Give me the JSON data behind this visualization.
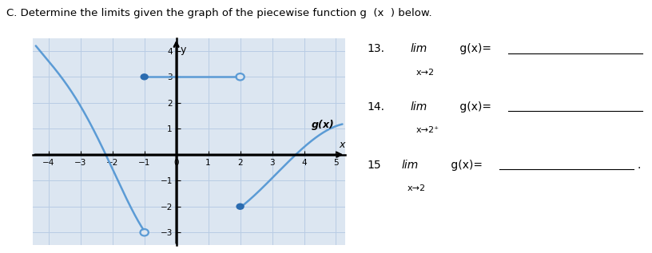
{
  "title": "C. Determine the limits given the graph of the piecewise function g  (x  ) below.",
  "graph_label": "g(x)",
  "xlim": [
    -4.5,
    5.3
  ],
  "ylim": [
    -3.5,
    4.5
  ],
  "xticks": [
    -4,
    -3,
    -2,
    -1,
    0,
    1,
    2,
    3,
    4,
    5
  ],
  "yticks": [
    -3,
    -2,
    -1,
    1,
    2,
    3,
    4
  ],
  "curve_color": "#5b9bd5",
  "curve_lw": 1.8,
  "filled_dot_color": "#2b6cb0",
  "open_dot_color": "#5b9bd5",
  "bg_color": "#dce6f1",
  "grid_color": "#b8cce4",
  "curve1_pts_x": [
    -4.4,
    -3.5,
    -2.5,
    -1.8,
    -1.3,
    -1.0
  ],
  "curve1_pts_y": [
    4.2,
    2.8,
    0.8,
    -1.2,
    -2.2,
    -3.0
  ],
  "curve3_pts_x": [
    2.0,
    2.5,
    3.0,
    3.5,
    4.0,
    4.5,
    5.2
  ],
  "curve3_pts_y": [
    -2.0,
    -1.6,
    -0.9,
    -0.2,
    0.3,
    0.7,
    1.2
  ],
  "q13_num": "13.",
  "q13_text": "lim  g(x)=",
  "q13_sub": "x→2",
  "q14_num": "14.",
  "q14_text": "lim  g(x)=",
  "q14_sub": "x→2⁺",
  "q15_num": "15",
  "q15_text": "lim g(x)=",
  "q15_sub": "x→2"
}
